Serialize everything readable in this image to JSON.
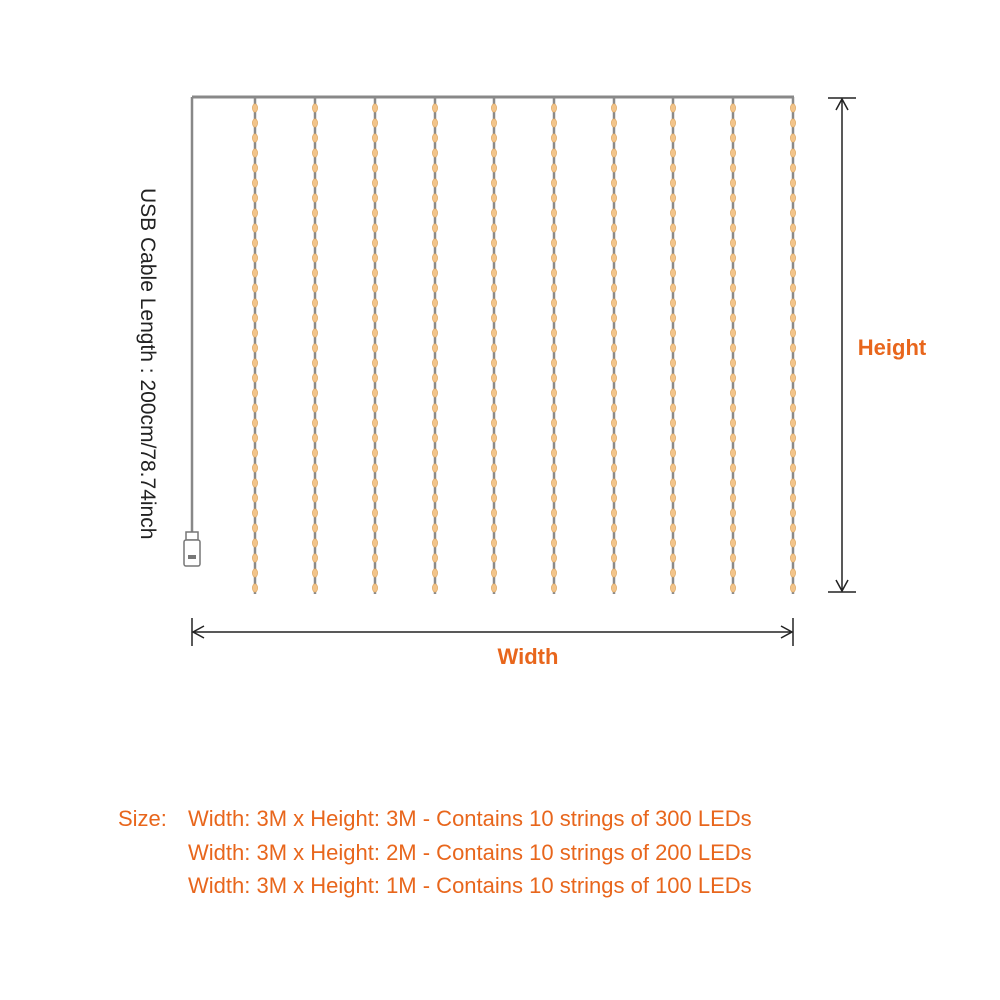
{
  "cable_label": "USB Cable Length : 200cm/78.74inch",
  "dimensions": {
    "height": "Height",
    "width": "Width"
  },
  "sizes": {
    "label": "Size:",
    "options": [
      "Width: 3M x Height: 3M - Contains 10 strings of 300 LEDs",
      "Width: 3M x Height: 2M - Contains 10 strings of 200 LEDs",
      "Width: 3M x Height: 1M - Contains 10 strings of 100 LEDs"
    ]
  }
}
